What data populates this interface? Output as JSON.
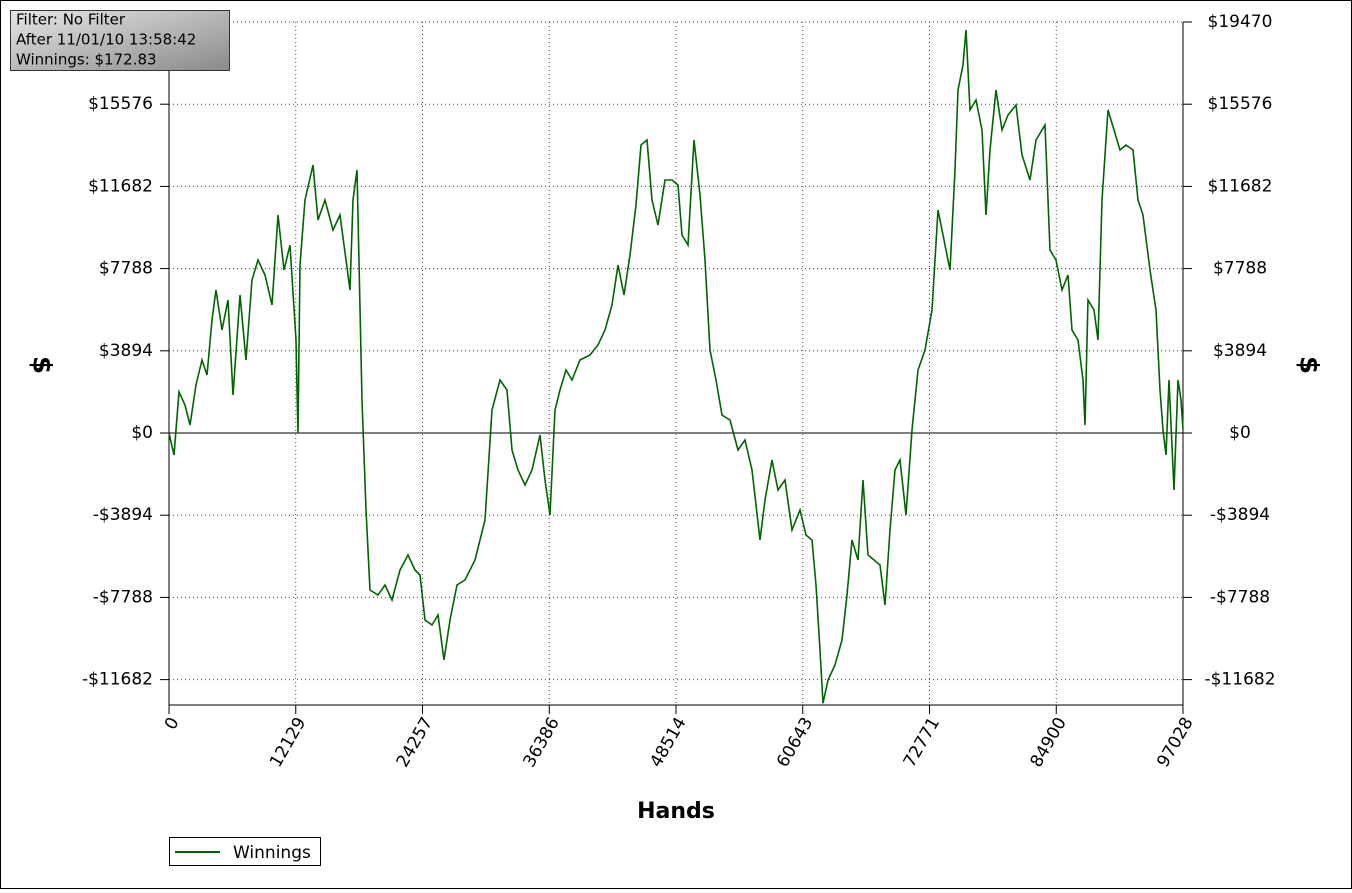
{
  "chart_data": {
    "type": "line",
    "annotations": [
      "Filter: No Filter",
      "After 11/01/10 13:58:42",
      "Winnings: $172.83"
    ],
    "x_label": "Hands",
    "y_label": "$",
    "y2_label": "$",
    "xlim": [
      0,
      97028
    ],
    "xticks": [
      0,
      12129,
      24257,
      36386,
      48514,
      60643,
      72771,
      84900,
      97028
    ],
    "ylim": [
      -12885,
      19470
    ],
    "yticks": [
      {
        "value": -11682,
        "label": "-$11682"
      },
      {
        "value": -7788,
        "label": "-$7788"
      },
      {
        "value": -3894,
        "label": "-$3894"
      },
      {
        "value": 0,
        "label": "$0"
      },
      {
        "value": 3894,
        "label": "$3894"
      },
      {
        "value": 7788,
        "label": "$7788"
      },
      {
        "value": 11682,
        "label": "$11682"
      },
      {
        "value": 15576,
        "label": "$15576"
      },
      {
        "value": 19470,
        "label": "$19470"
      }
    ],
    "grid": true,
    "zero_line": true,
    "legend": "bottom-left",
    "series": [
      {
        "name": "Winnings",
        "color": "#006400",
        "x": [
          0,
          478,
          957,
          1531,
          2010,
          2584,
          3158,
          3636,
          4115,
          4497,
          5072,
          5646,
          6124,
          6794,
          7368,
          7942,
          8516,
          9186,
          9856,
          10430,
          11004,
          11578,
          12153,
          12344,
          12535,
          13013,
          13779,
          14257,
          14928,
          15693,
          16363,
          16937,
          17320,
          17607,
          17990,
          18468,
          18851,
          19234,
          19999,
          20669,
          21339,
          22104,
          22870,
          23540,
          24018,
          24497,
          25166,
          25741,
          26315,
          26889,
          27559,
          28324,
          29281,
          30238,
          30908,
          31673,
          32343,
          32822,
          33396,
          34066,
          34735,
          35501,
          35979,
          36458,
          36936,
          37415,
          37989,
          38563,
          39329,
          40285,
          41051,
          41721,
          42390,
          42965,
          43539,
          44113,
          44687,
          45166,
          45740,
          46218,
          46792,
          47462,
          48132,
          48706,
          49089,
          49663,
          50237,
          50811,
          51290,
          51768,
          52342,
          52917,
          53682,
          54448,
          55117,
          55787,
          56553,
          57031,
          57701,
          58275,
          58945,
          59615,
          60380,
          60955,
          61529,
          61911,
          62294,
          62581,
          63059,
          63729,
          64399,
          64878,
          65356,
          65930,
          66409,
          66887,
          67461,
          68036,
          68514,
          68992,
          69471,
          69949,
          70524,
          71098,
          71672,
          72342,
          73011,
          73586,
          74160,
          74734,
          75212,
          75499,
          75978,
          76265,
          76648,
          77222,
          77796,
          78179,
          78561,
          79136,
          79710,
          80284,
          81049,
          81624,
          82389,
          82963,
          83824,
          84303,
          84877,
          85451,
          86025,
          86408,
          86982,
          87461,
          87652,
          87939,
          88513,
          88896,
          89279,
          89853,
          90427,
          91001,
          91575,
          92245,
          92724,
          93202,
          93872,
          94446,
          94829,
          95116,
          95403,
          95690,
          96168,
          96551,
          96838,
          97028
        ],
        "values": [
          0,
          -1042,
          1942,
          1326,
          379,
          2274,
          3458,
          2747,
          5353,
          6774,
          4879,
          6300,
          1800,
          6537,
          3458,
          7248,
          8195,
          7484,
          6063,
          10327,
          7721,
          8906,
          4405,
          0,
          7958,
          11037,
          12695,
          10090,
          11037,
          9616,
          10327,
          8195,
          6774,
          11037,
          12458,
          1563,
          -3647,
          -7437,
          -7674,
          -7200,
          -7911,
          -6490,
          -5779,
          -6490,
          -6727,
          -8858,
          -9095,
          -8621,
          -10753,
          -8858,
          -7200,
          -6963,
          -6016,
          -4121,
          1090,
          2511,
          2037,
          -805,
          -1753,
          -2463,
          -1753,
          -95,
          -2226,
          -3884,
          1090,
          2037,
          2984,
          2511,
          3458,
          3695,
          4169,
          4879,
          6063,
          7958,
          6537,
          8432,
          10800,
          13643,
          13879,
          11037,
          9853,
          11985,
          11985,
          11748,
          9379,
          8906,
          13879,
          11274,
          8195,
          3932,
          2511,
          853,
          616,
          -805,
          -332,
          -1753,
          -5069,
          -3174,
          -1279,
          -2700,
          -2226,
          -4595,
          -3647,
          -4832,
          -5069,
          -7200,
          -10279,
          -12800,
          -11700,
          -10990,
          -9806,
          -7674,
          -5069,
          -6016,
          -2226,
          -5779,
          -6016,
          -6253,
          -8148,
          -4595,
          -1753,
          -1279,
          -3884,
          142,
          2984,
          3932,
          5827,
          10564,
          9142,
          7721,
          12458,
          16248,
          17432,
          19090,
          15301,
          15774,
          14353,
          10327,
          13406,
          16248,
          14353,
          15064,
          15537,
          13169,
          11985,
          13879,
          14590,
          8669,
          8195,
          6774,
          7484,
          4879,
          4405,
          2511,
          379,
          6300,
          5826,
          4405,
          11037,
          15301,
          14353,
          13406,
          13643,
          13406,
          11037,
          10327,
          7721,
          5827,
          2037,
          142,
          -1042,
          2511,
          -2700,
          2511,
          1563,
          173
        ]
      }
    ]
  }
}
